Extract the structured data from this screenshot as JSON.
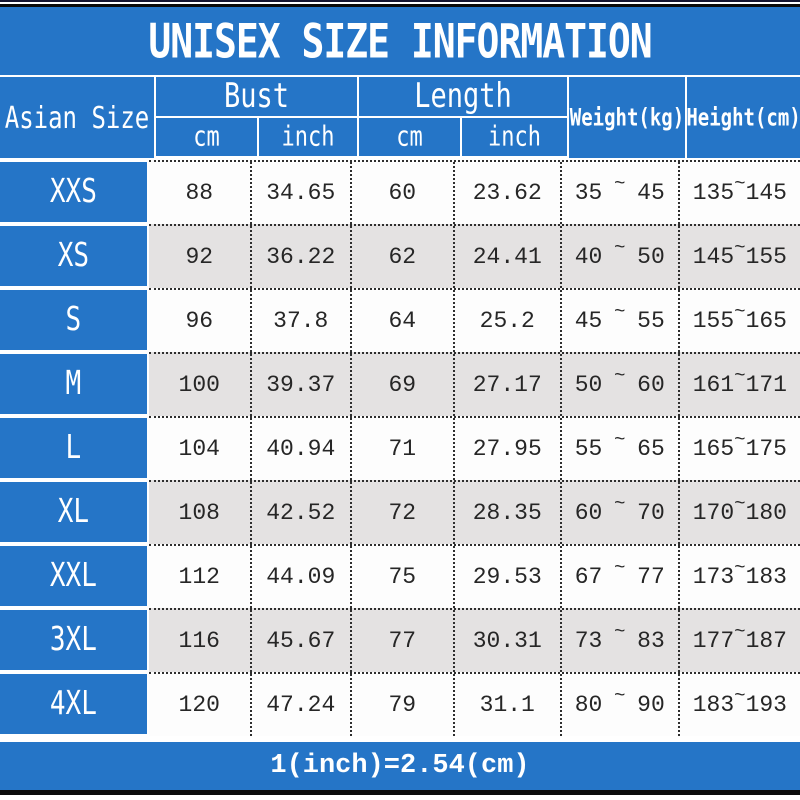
{
  "title": "UNISEX SIZE INFORMATION",
  "footer_note": "1(inch)=2.54(cm)",
  "range_separator": "~",
  "colors": {
    "accent_blue": "#2575c7",
    "alt_row_gray": "#e4e2e2",
    "edge_black": "#0b0b0b",
    "text_white": "#ffffff",
    "text_dark": "#262626"
  },
  "header": {
    "size_col": "Asian Size",
    "bust": "Bust",
    "length": "Length",
    "bust_cm": "cm",
    "bust_inch": "inch",
    "length_cm": "cm",
    "length_inch": "inch",
    "weight": "Weight(kg)",
    "height": "Height(cm)"
  },
  "table": {
    "rows": [
      {
        "size": "XXS",
        "bust_cm": "88",
        "bust_inch": "34.65",
        "length_cm": "60",
        "length_inch": "23.62",
        "weight_min": "35",
        "weight_max": "45",
        "height_min": "135",
        "height_max": "145"
      },
      {
        "size": "XS",
        "bust_cm": "92",
        "bust_inch": "36.22",
        "length_cm": "62",
        "length_inch": "24.41",
        "weight_min": "40",
        "weight_max": "50",
        "height_min": "145",
        "height_max": "155"
      },
      {
        "size": "S",
        "bust_cm": "96",
        "bust_inch": "37.8",
        "length_cm": "64",
        "length_inch": "25.2",
        "weight_min": "45",
        "weight_max": "55",
        "height_min": "155",
        "height_max": "165"
      },
      {
        "size": "M",
        "bust_cm": "100",
        "bust_inch": "39.37",
        "length_cm": "69",
        "length_inch": "27.17",
        "weight_min": "50",
        "weight_max": "60",
        "height_min": "161",
        "height_max": "171"
      },
      {
        "size": "L",
        "bust_cm": "104",
        "bust_inch": "40.94",
        "length_cm": "71",
        "length_inch": "27.95",
        "weight_min": "55",
        "weight_max": "65",
        "height_min": "165",
        "height_max": "175"
      },
      {
        "size": "XL",
        "bust_cm": "108",
        "bust_inch": "42.52",
        "length_cm": "72",
        "length_inch": "28.35",
        "weight_min": "60",
        "weight_max": "70",
        "height_min": "170",
        "height_max": "180"
      },
      {
        "size": "XXL",
        "bust_cm": "112",
        "bust_inch": "44.09",
        "length_cm": "75",
        "length_inch": "29.53",
        "weight_min": "67",
        "weight_max": "77",
        "height_min": "173",
        "height_max": "183"
      },
      {
        "size": "3XL",
        "bust_cm": "116",
        "bust_inch": "45.67",
        "length_cm": "77",
        "length_inch": "30.31",
        "weight_min": "73",
        "weight_max": "83",
        "height_min": "177",
        "height_max": "187"
      },
      {
        "size": "4XL",
        "bust_cm": "120",
        "bust_inch": "47.24",
        "length_cm": "79",
        "length_inch": "31.1",
        "weight_min": "80",
        "weight_max": "90",
        "height_min": "183",
        "height_max": "193"
      }
    ]
  },
  "chart_data": {
    "type": "table",
    "title": "UNISEX SIZE INFORMATION",
    "columns": [
      "Asian Size",
      "Bust cm",
      "Bust inch",
      "Length cm",
      "Length inch",
      "Weight(kg)",
      "Height(cm)"
    ],
    "rows": [
      [
        "XXS",
        "88",
        "34.65",
        "60",
        "23.62",
        "35 ~ 45",
        "135 ~ 145"
      ],
      [
        "XS",
        "92",
        "36.22",
        "62",
        "24.41",
        "40 ~ 50",
        "145 ~ 155"
      ],
      [
        "S",
        "96",
        "37.8",
        "64",
        "25.2",
        "45 ~ 55",
        "155 ~ 165"
      ],
      [
        "M",
        "100",
        "39.37",
        "69",
        "27.17",
        "50 ~ 60",
        "161 ~ 171"
      ],
      [
        "L",
        "104",
        "40.94",
        "71",
        "27.95",
        "55 ~ 65",
        "165 ~ 175"
      ],
      [
        "XL",
        "108",
        "42.52",
        "72",
        "28.35",
        "60 ~ 70",
        "170 ~ 180"
      ],
      [
        "XXL",
        "112",
        "44.09",
        "75",
        "29.53",
        "67 ~ 77",
        "173 ~ 183"
      ],
      [
        "3XL",
        "116",
        "45.67",
        "77",
        "30.31",
        "73 ~ 83",
        "177 ~ 187"
      ],
      [
        "4XL",
        "120",
        "47.24",
        "79",
        "31.1",
        "80 ~ 90",
        "183 ~ 193"
      ]
    ],
    "footnote": "1(inch)=2.54(cm)"
  }
}
